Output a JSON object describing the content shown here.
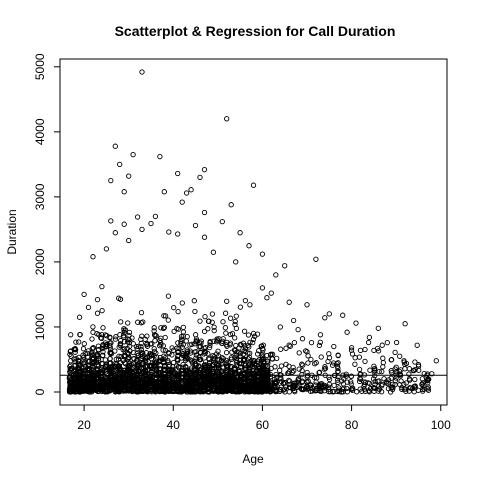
{
  "chart_data": {
    "type": "scatter",
    "title": "Scatterplot & Regression for Call Duration",
    "xlabel": "Age",
    "ylabel": "Duration",
    "xlim": [
      14.6,
      101.4
    ],
    "ylim": [
      -200,
      5120
    ],
    "xticks": [
      20,
      40,
      60,
      80,
      100
    ],
    "yticks": [
      0,
      1000,
      2000,
      3000,
      4000,
      5000
    ],
    "grid": false,
    "legend": "none",
    "regression_line": {
      "intercept": 258,
      "slope": 0
    },
    "density_note_points": true,
    "points": [
      [
        33,
        4920
      ],
      [
        52,
        4200
      ],
      [
        27,
        3780
      ],
      [
        37,
        3620
      ],
      [
        31,
        3650
      ],
      [
        28,
        3500
      ],
      [
        47,
        3420
      ],
      [
        43,
        3060
      ],
      [
        46,
        3300
      ],
      [
        30,
        3320
      ],
      [
        29,
        3080
      ],
      [
        41,
        3360
      ],
      [
        26,
        3250
      ],
      [
        58,
        3180
      ],
      [
        44,
        3110
      ],
      [
        38,
        3080
      ],
      [
        53,
        2880
      ],
      [
        42,
        2920
      ],
      [
        47,
        2760
      ],
      [
        36,
        2700
      ],
      [
        32,
        2690
      ],
      [
        26,
        2630
      ],
      [
        35,
        2590
      ],
      [
        29,
        2580
      ],
      [
        45,
        2560
      ],
      [
        51,
        2620
      ],
      [
        33,
        2500
      ],
      [
        39,
        2460
      ],
      [
        41,
        2430
      ],
      [
        55,
        2450
      ],
      [
        47,
        2380
      ],
      [
        27,
        2450
      ],
      [
        30,
        2330
      ],
      [
        22,
        2080
      ],
      [
        25,
        2200
      ],
      [
        57,
        2250
      ],
      [
        60,
        2120
      ],
      [
        49,
        2150
      ],
      [
        72,
        2040
      ],
      [
        65,
        1940
      ],
      [
        63,
        1800
      ],
      [
        54,
        2000
      ],
      [
        60,
        1600
      ],
      [
        66,
        1380
      ],
      [
        70,
        1340
      ],
      [
        75,
        1200
      ],
      [
        78,
        1180
      ],
      [
        67,
        1100
      ],
      [
        74,
        1140
      ],
      [
        81,
        1060
      ],
      [
        92,
        1050
      ],
      [
        86,
        980
      ],
      [
        79,
        920
      ],
      [
        84,
        840
      ],
      [
        88,
        760
      ],
      [
        99,
        480
      ],
      [
        95,
        420
      ],
      [
        90,
        380
      ],
      [
        98,
        280
      ],
      [
        94,
        330
      ],
      [
        80,
        680
      ],
      [
        82,
        640
      ],
      [
        76,
        700
      ],
      [
        71,
        760
      ],
      [
        69,
        820
      ],
      [
        73,
        880
      ],
      [
        64,
        1000
      ],
      [
        68,
        960
      ],
      [
        17,
        880
      ],
      [
        18,
        610
      ],
      [
        19,
        1150
      ],
      [
        21,
        1300
      ],
      [
        20,
        1500
      ],
      [
        23,
        1420
      ],
      [
        24,
        1620
      ],
      [
        22,
        920
      ],
      [
        18,
        350
      ],
      [
        17,
        480
      ],
      [
        62,
        1520
      ],
      [
        61,
        1450
      ],
      [
        85,
        640
      ],
      [
        87,
        520
      ],
      [
        83,
        470
      ],
      [
        89,
        300
      ],
      [
        91,
        250
      ],
      [
        77,
        560
      ],
      [
        70,
        620
      ],
      [
        66,
        720
      ],
      [
        96,
        140
      ],
      [
        93,
        200
      ]
    ],
    "dense_band": {
      "x_range": [
        17,
        62
      ],
      "y_range": [
        0,
        1400
      ]
    }
  }
}
